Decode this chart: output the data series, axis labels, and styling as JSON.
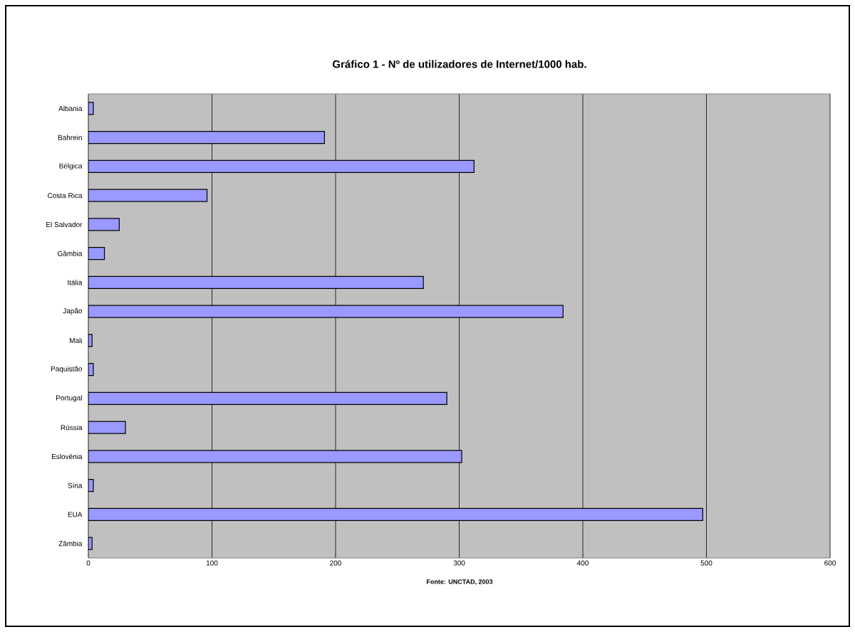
{
  "chart_data": {
    "type": "bar",
    "orientation": "horizontal",
    "title": "Gráfico 1 - Nº de utilizadores de Internet/1000 hab.",
    "categories": [
      "Albania",
      "Bahrein",
      "Bélgica",
      "Costa Rica",
      "El Salvador",
      "Gâmbia",
      "Itália",
      "Japão",
      "Mali",
      "Paquistão",
      "Portugal",
      "Rússia",
      "Eslovénia",
      "Síria",
      "EUA",
      "Zâmbia"
    ],
    "values": [
      4,
      191,
      312,
      96,
      25,
      13,
      271,
      384,
      3,
      4,
      290,
      30,
      302,
      4,
      497,
      3
    ],
    "color": "#9999ff",
    "xlim": [
      0,
      600
    ],
    "xticks": [
      0,
      100,
      200,
      300,
      400,
      500,
      600
    ],
    "grid": "x",
    "annotations": [
      "Fonte: UNCTAD, 2003"
    ]
  }
}
